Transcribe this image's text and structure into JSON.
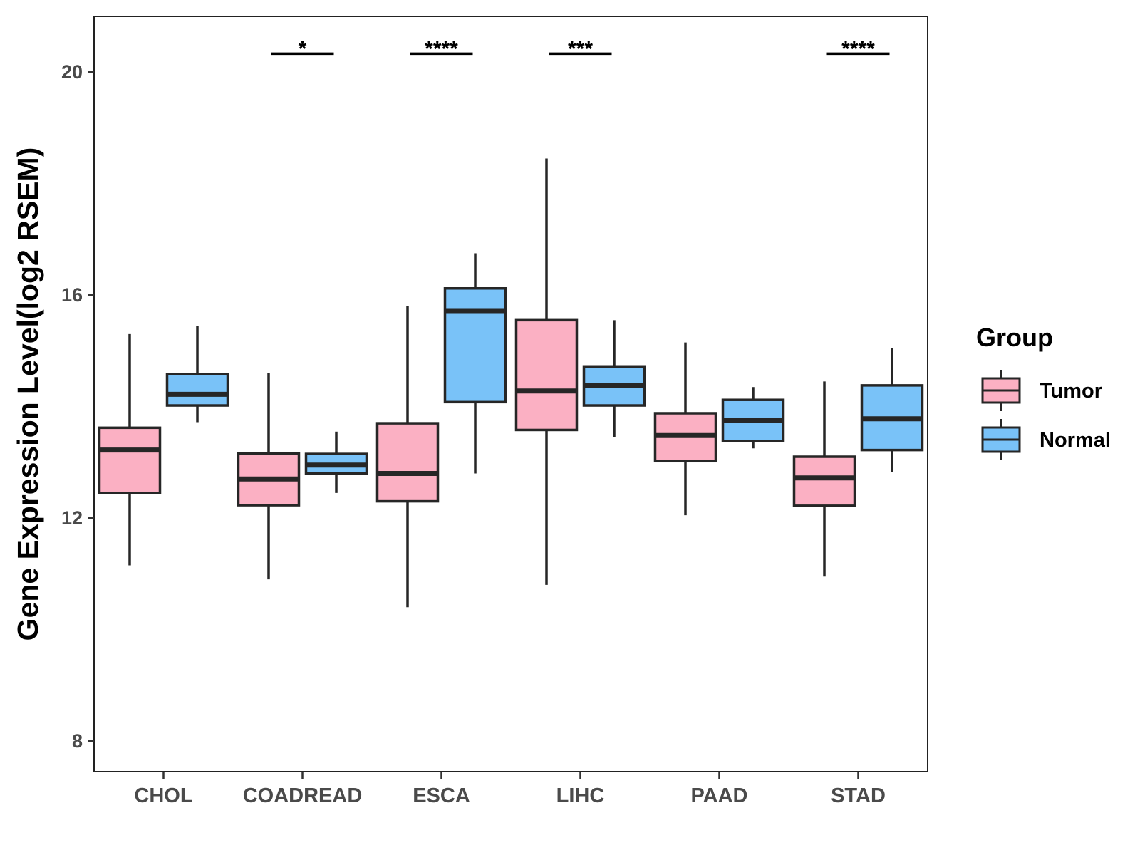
{
  "chart_data": {
    "type": "boxplot",
    "title": "",
    "xlabel": "",
    "ylabel": "Gene Expression Level(log2 RSEM)",
    "ylim": [
      7.45,
      21.0
    ],
    "yticks": [
      8,
      12,
      16,
      20
    ],
    "ytick_labels": [
      "8",
      "12",
      "16",
      "20"
    ],
    "grid": false,
    "categories": [
      "CHOL",
      "COADREAD",
      "ESCA",
      "LIHC",
      "PAAD",
      "STAD"
    ],
    "series": [
      {
        "name": "Tumor",
        "color": "#FBB0C3",
        "boxes": [
          {
            "whisker_low": 11.15,
            "q1": 12.45,
            "median": 13.22,
            "q3": 13.62,
            "whisker_high": 15.3
          },
          {
            "whisker_low": 10.9,
            "q1": 12.23,
            "median": 12.7,
            "q3": 13.16,
            "whisker_high": 14.6
          },
          {
            "whisker_low": 10.4,
            "q1": 12.3,
            "median": 12.8,
            "q3": 13.7,
            "whisker_high": 15.8
          },
          {
            "whisker_low": 10.8,
            "q1": 13.58,
            "median": 14.28,
            "q3": 15.55,
            "whisker_high": 18.45
          },
          {
            "whisker_low": 12.05,
            "q1": 13.02,
            "median": 13.48,
            "q3": 13.88,
            "whisker_high": 15.15
          },
          {
            "whisker_low": 10.95,
            "q1": 12.22,
            "median": 12.72,
            "q3": 13.1,
            "whisker_high": 14.45
          }
        ]
      },
      {
        "name": "Normal",
        "color": "#79C2F8",
        "boxes": [
          {
            "whisker_low": 13.72,
            "q1": 14.02,
            "median": 14.22,
            "q3": 14.58,
            "whisker_high": 15.45
          },
          {
            "whisker_low": 12.45,
            "q1": 12.8,
            "median": 12.95,
            "q3": 13.15,
            "whisker_high": 13.55
          },
          {
            "whisker_low": 12.8,
            "q1": 14.08,
            "median": 15.72,
            "q3": 16.12,
            "whisker_high": 16.75
          },
          {
            "whisker_low": 13.45,
            "q1": 14.02,
            "median": 14.38,
            "q3": 14.72,
            "whisker_high": 15.55
          },
          {
            "whisker_low": 13.25,
            "q1": 13.38,
            "median": 13.75,
            "q3": 14.12,
            "whisker_high": 14.35
          },
          {
            "whisker_low": 12.82,
            "q1": 13.22,
            "median": 13.78,
            "q3": 14.38,
            "whisker_high": 15.05
          }
        ]
      }
    ],
    "significance": [
      {
        "category": "CHOL",
        "label": ""
      },
      {
        "category": "COADREAD",
        "label": "*"
      },
      {
        "category": "ESCA",
        "label": "****"
      },
      {
        "category": "LIHC",
        "label": "***"
      },
      {
        "category": "PAAD",
        "label": ""
      },
      {
        "category": "STAD",
        "label": "****"
      }
    ],
    "significance_level": 20.33,
    "legend": {
      "title": "Group",
      "position": "right",
      "items": [
        {
          "label": "Tumor",
          "color": "#FBB0C3"
        },
        {
          "label": "Normal",
          "color": "#79C2F8"
        }
      ]
    }
  }
}
